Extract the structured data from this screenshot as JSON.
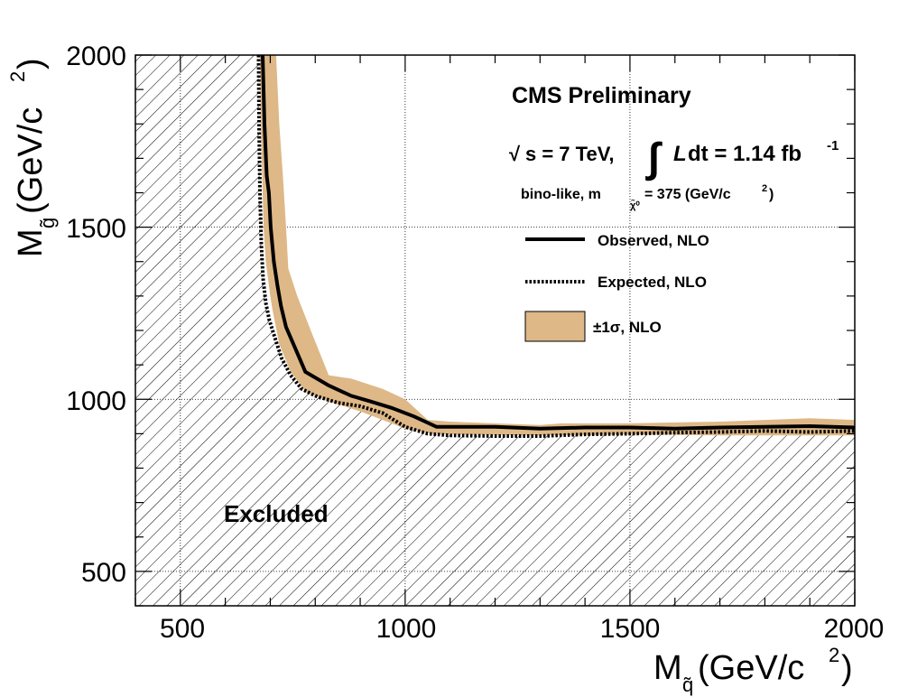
{
  "chart_data": {
    "type": "line",
    "title": "CMS Preliminary",
    "energy_prefix": "√",
    "energy": "s = 7 TeV,",
    "integral_symbol": "∫",
    "lumi_L": "L",
    "lumi_rest": "dt = 1.14 fb",
    "lumi_exp": "-1",
    "model_prefix": "bino-like,  m",
    "model_sub": "χ̃⁰",
    "model_value": " = 375 (GeV/c",
    "model_value_exp": "2",
    "model_value_end": ")",
    "xlabel": {
      "M": "M",
      "sub": "q̃",
      "unit": " (GeV/c",
      "exp": "2",
      "end": ")"
    },
    "ylabel": {
      "M": "M",
      "sub": "g̃",
      "unit": " (GeV/c",
      "exp": "2",
      "end": ")"
    },
    "xlim": [
      400,
      2000
    ],
    "ylim": [
      400,
      2000
    ],
    "xticks": [
      500,
      1000,
      1500,
      2000
    ],
    "yticks": [
      500,
      1000,
      1500,
      2000
    ],
    "excluded_label": "Excluded",
    "legend": {
      "observed": "Observed, NLO",
      "expected": "Expected, NLO",
      "band": "±1σ, NLO"
    },
    "colors": {
      "band": "#deb887",
      "line": "#000000",
      "hatch": "#000000"
    },
    "series": [
      {
        "name": "Observed, NLO",
        "style": "solid",
        "x": [
          683,
          687,
          692,
          697,
          701,
          708,
          716,
          724,
          735,
          755,
          778,
          830,
          880,
          920,
          970,
          1020,
          1070,
          1120,
          1200,
          1300,
          1400,
          1500,
          1600,
          1700,
          1800,
          1900,
          2000
        ],
        "y": [
          2000,
          1800,
          1650,
          1600,
          1500,
          1400,
          1330,
          1270,
          1210,
          1150,
          1080,
          1040,
          1010,
          995,
          975,
          950,
          920,
          920,
          920,
          915,
          918,
          918,
          915,
          918,
          920,
          922,
          918
        ]
      },
      {
        "name": "Expected, NLO",
        "style": "dotted",
        "x": [
          674,
          675,
          677,
          680,
          684,
          690,
          698,
          710,
          725,
          745,
          770,
          800,
          850,
          900,
          950,
          1000,
          1050,
          1100,
          1200,
          1300,
          1400,
          1500,
          1600,
          1700,
          1800,
          1900,
          2000
        ],
        "y": [
          2000,
          1800,
          1600,
          1450,
          1350,
          1280,
          1230,
          1180,
          1120,
          1070,
          1030,
          1010,
          990,
          980,
          960,
          920,
          900,
          895,
          893,
          893,
          898,
          900,
          903,
          905,
          908,
          905,
          908
        ]
      },
      {
        "name": "±1σ, NLO upper",
        "style": "band-edge",
        "x": [
          713,
          720,
          728,
          735,
          740,
          760,
          790,
          830,
          880,
          950,
          1000,
          1050,
          1100,
          1300,
          1350,
          1500,
          1700,
          1900,
          2000
        ],
        "y": [
          2000,
          1800,
          1650,
          1500,
          1380,
          1300,
          1200,
          1070,
          1060,
          1030,
          1000,
          940,
          935,
          925,
          930,
          930,
          935,
          945,
          940
        ]
      },
      {
        "name": "±1σ, NLO lower",
        "style": "band-edge",
        "x": [
          2000,
          1700,
          1500,
          1300,
          1100,
          1060,
          1000,
          950,
          900,
          840,
          780,
          745,
          720,
          705,
          700,
          690,
          685,
          683,
          679,
          677
        ],
        "y": [
          895,
          895,
          898,
          895,
          898,
          900,
          915,
          940,
          965,
          990,
          1020,
          1080,
          1160,
          1260,
          1300,
          1400,
          1500,
          1600,
          1800,
          2000
        ]
      }
    ]
  }
}
